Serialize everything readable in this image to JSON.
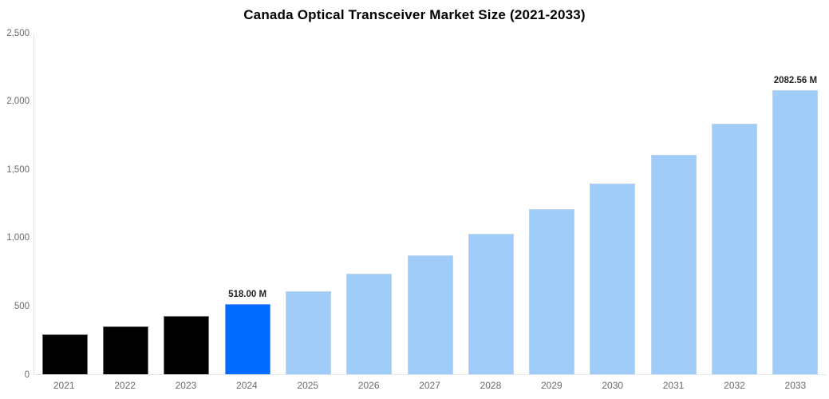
{
  "chart_data": {
    "type": "bar",
    "title": "Canada Optical Transceiver Market Size (2021-2033)",
    "categories": [
      "2021",
      "2022",
      "2023",
      "2024",
      "2025",
      "2026",
      "2027",
      "2028",
      "2029",
      "2030",
      "2031",
      "2032",
      "2033"
    ],
    "values": [
      295,
      350,
      425,
      518.0,
      610,
      735,
      870,
      1030,
      1210,
      1400,
      1610,
      1840,
      2082.56
    ],
    "unit": "M",
    "xlabel": "",
    "ylabel": "",
    "ylim": [
      0,
      2500
    ],
    "yticks": [
      "0",
      "500",
      "1,000",
      "1,500",
      "2,000",
      "2,500"
    ],
    "grid": false,
    "legend": false,
    "annotations": [
      {
        "category": "2024",
        "text": "518.00 M"
      },
      {
        "category": "2033",
        "text": "2082.56 M"
      }
    ],
    "bar_colors": [
      "#000000",
      "#000000",
      "#000000",
      "#006BFF",
      "#A0CCF9",
      "#A0CCF9",
      "#A0CCF9",
      "#A0CCF9",
      "#A0CCF9",
      "#A0CCF9",
      "#A0CCF9",
      "#A0CCF9",
      "#A0CCF9"
    ],
    "color_legend": {
      "historical": "#000000",
      "base_year": "#006BFF",
      "forecast": "#A0CCF9"
    },
    "axis_line_color": "#e6e6e6"
  }
}
